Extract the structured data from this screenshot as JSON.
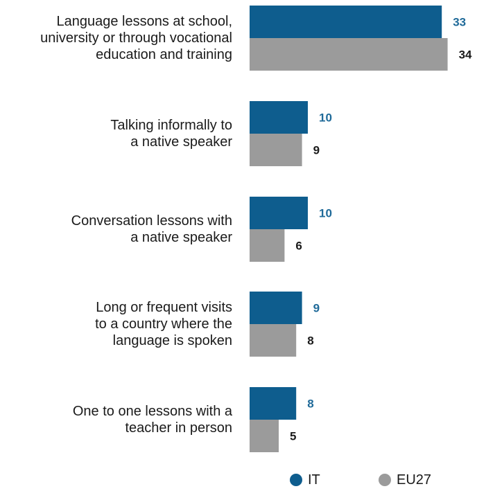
{
  "chart_data": {
    "type": "bar",
    "orientation": "horizontal",
    "categories": [
      "Language lessons at school, university or through vocational education and training",
      "Talking informally to a native speaker",
      "Conversation lessons with a native speaker",
      "Long or frequent visits to a country where the language is spoken",
      "One to one lessons with a teacher in person"
    ],
    "category_lines": [
      [
        "Language lessons at school,",
        "university or through vocational",
        "education and training"
      ],
      [
        "Talking informally to",
        "a native speaker"
      ],
      [
        "Conversation lessons with",
        "a native speaker"
      ],
      [
        "Long or frequent visits",
        "to a country where the",
        "language is spoken"
      ],
      [
        "One to one lessons with a",
        "teacher in person"
      ]
    ],
    "series": [
      {
        "name": "IT",
        "color": "#0e5d8e",
        "label_color": "#1f6a99",
        "values": [
          33,
          10,
          10,
          9,
          8
        ]
      },
      {
        "name": "EU27",
        "color": "#9b9b9b",
        "label_color": "#1a1a1a",
        "values": [
          34,
          9,
          6,
          8,
          5
        ]
      }
    ],
    "xlim": [
      0,
      34
    ],
    "legend_position": "bottom-right"
  }
}
